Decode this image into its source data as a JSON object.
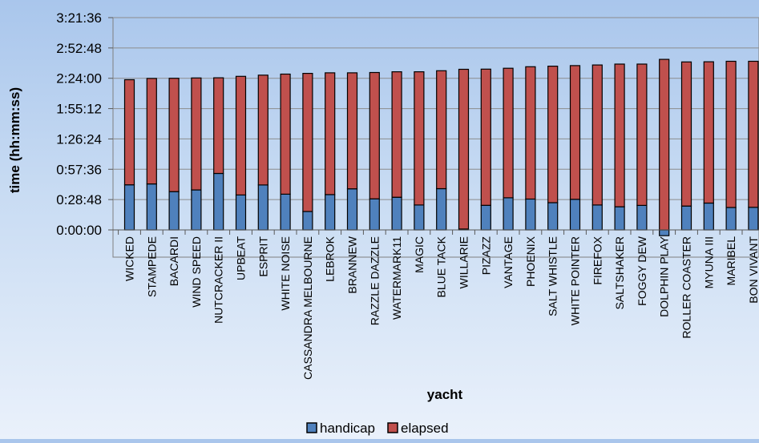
{
  "chart_data": {
    "type": "bar",
    "stacked": true,
    "xlabel": "yacht",
    "ylabel": "time (hh:mm:ss)",
    "y_unit": "seconds",
    "ylim": [
      -2000,
      12096
    ],
    "y_ticks": [
      0,
      1728,
      3456,
      5184,
      6912,
      8640,
      10368,
      12096
    ],
    "y_tick_labels": [
      "0:00:00",
      "0:28:48",
      "0:57:36",
      "1:26:24",
      "1:55:12",
      "2:24:00",
      "2:52:48",
      "3:21:36"
    ],
    "grid": true,
    "legend_position": "bottom",
    "categories": [
      "WICKED",
      "STAMPEDE",
      "BACARDI",
      "WIND SPEED",
      "NUTCRACKER II",
      "UPBEAT",
      "ESPRIT",
      "WHITE NOISE",
      "CASSANDRA MELBOURNE",
      "LEBROK",
      "BRANNEW",
      "RAZZLE DAZZLE",
      "WATERMARK11",
      "MAGIC",
      "BLUE TACK",
      "WILLARIE",
      "PIZAZZ",
      "VANTAGE",
      "PHOENIX",
      "SALT WHISTLE",
      "WHITE POINTER",
      "FIREFOX",
      "SALTSHAKER",
      "FOGGY DEW",
      "DOLPHIN PLAY",
      "ROLLER COASTER",
      "MYUNA III",
      "MARIBEL",
      "BON VIVANT"
    ],
    "series": [
      {
        "name": "handicap",
        "color": "#4f81bd",
        "values": [
          2570,
          2620,
          2180,
          2280,
          3220,
          1990,
          2560,
          2040,
          1050,
          2010,
          2340,
          1770,
          1860,
          1420,
          2350,
          50,
          1400,
          1830,
          1760,
          1550,
          1740,
          1420,
          1320,
          1400,
          -330,
          1360,
          1530,
          1280,
          1290
        ]
      },
      {
        "name": "elapsed",
        "color": "#c0504d",
        "values": [
          5990,
          6010,
          6460,
          6380,
          5450,
          6760,
          6260,
          6840,
          7870,
          6940,
          6610,
          7200,
          7150,
          7590,
          6720,
          9100,
          7760,
          7380,
          7540,
          7780,
          7620,
          7980,
          8130,
          8050,
          9720,
          8210,
          8050,
          8330,
          8320
        ]
      }
    ]
  }
}
